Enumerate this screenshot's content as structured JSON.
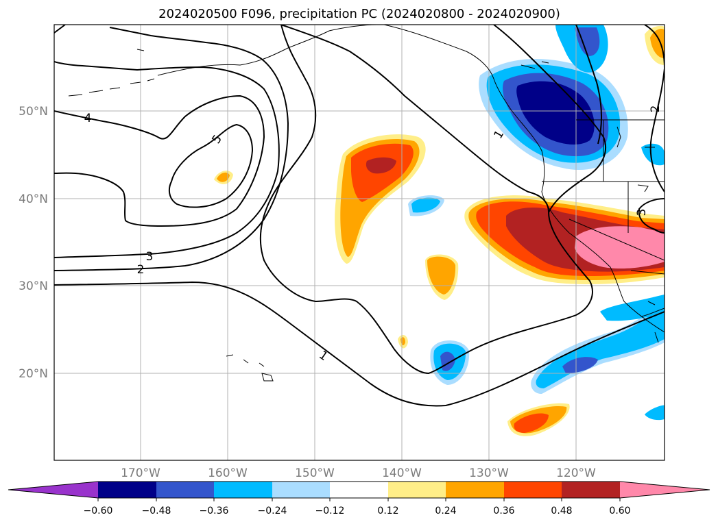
{
  "map": {
    "title": "2024020500 F096, precipitation PC (2024020800 - 2024020900)",
    "lat_labels": [
      "50°N",
      "40°N",
      "30°N",
      "20°N"
    ],
    "lon_labels": [
      "170°W",
      "160°W",
      "150°W",
      "140°W",
      "130°W",
      "120°W"
    ],
    "contour_labels": [
      "4",
      "5",
      "3",
      "2",
      "1",
      "1",
      "2",
      "3"
    ],
    "colorbar": {
      "labels": [
        "−0.60",
        "−0.48",
        "−0.36",
        "−0.24",
        "−0.12",
        "0.12",
        "0.24",
        "0.36",
        "0.48",
        "0.60"
      ],
      "colors": [
        "#9933cc",
        "#000088",
        "#3355cc",
        "#00bbff",
        "#aaddff",
        "#ffffff",
        "#ffee88",
        "#ffa500",
        "#ff4500",
        "#b22222",
        "#ff88aa"
      ]
    }
  }
}
